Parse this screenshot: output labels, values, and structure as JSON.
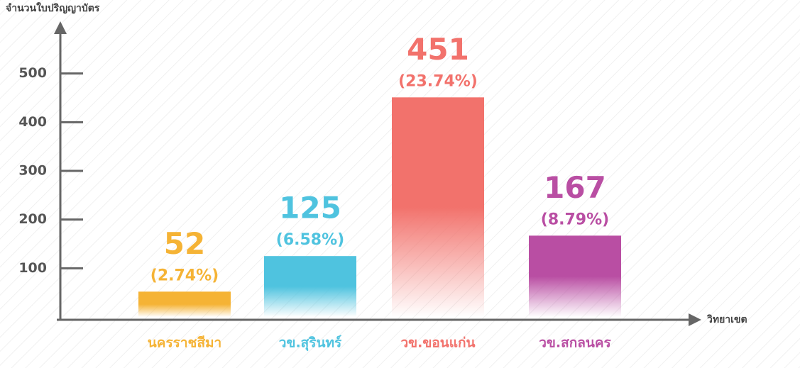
{
  "chart_data": {
    "type": "bar",
    "y_axis_label": "จำนวนใบปริญญาบัตร",
    "x_axis_label": "วิทยาเขต",
    "categories": [
      "นครราชสีมา",
      "วข.สุรินทร์",
      "วข.ขอนแก่น",
      "วข.สกลนคร"
    ],
    "values": [
      52,
      125,
      451,
      167
    ],
    "share_labels": [
      "(2.74%)",
      "(6.58%)",
      "(23.74%)",
      "(8.79%)"
    ],
    "colors": [
      "#f5b335",
      "#4fc3df",
      "#f2726c",
      "#b94ea3"
    ],
    "ylim": [
      0,
      600
    ],
    "yticks": [
      100,
      200,
      300,
      400,
      500
    ],
    "grid": false
  }
}
